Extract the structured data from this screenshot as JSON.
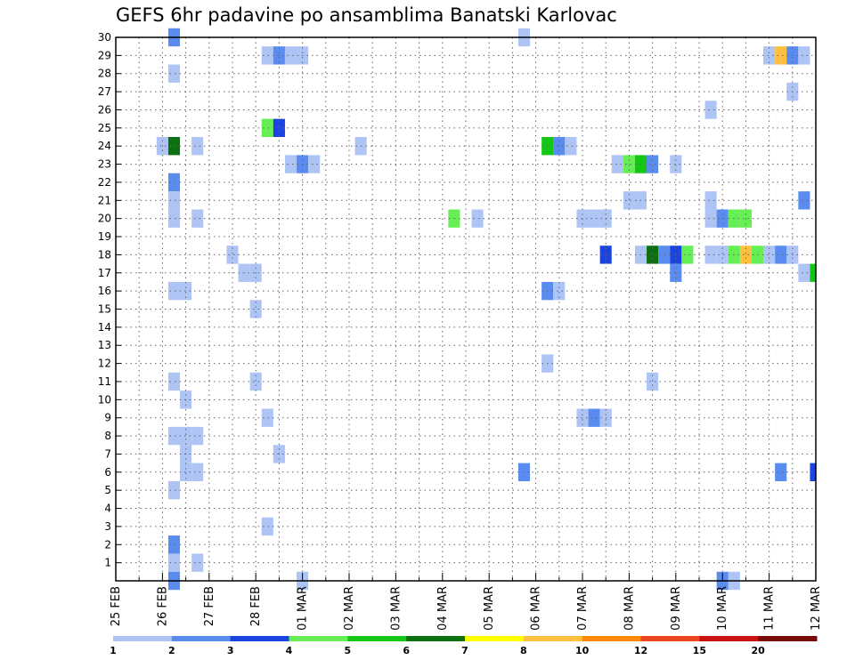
{
  "chart_data": {
    "type": "heatmap",
    "title": "GEFS 6hr padavine po ansamblima Banatski Karlovac",
    "y_ticks": [
      "1",
      "2",
      "3",
      "4",
      "5",
      "6",
      "7",
      "8",
      "9",
      "10",
      "11",
      "12",
      "13",
      "14",
      "15",
      "16",
      "17",
      "18",
      "19",
      "20",
      "21",
      "22",
      "23",
      "24",
      "25",
      "26",
      "27",
      "28",
      "29",
      "30"
    ],
    "y_range": [
      0,
      30
    ],
    "x_ticks": [
      "25 FEB",
      "26 FEB",
      "27 FEB",
      "28 FEB",
      "01 MAR",
      "02 MAR",
      "03 MAR",
      "04 MAR",
      "05 MAR",
      "06 MAR",
      "07 MAR",
      "08 MAR",
      "09 MAR",
      "10 MAR",
      "11 MAR",
      "12 MAR"
    ],
    "x_range_days": [
      0,
      15
    ],
    "x_step_hours": 6,
    "grid": true,
    "colorbar": {
      "colors": [
        "#adc4f5",
        "#5a8cf0",
        "#1a43e0",
        "#66ee55",
        "#15c715",
        "#0a7010",
        "#ffff00",
        "#ffc040",
        "#ff8800",
        "#ee4422",
        "#cc1111",
        "#7a0a0a"
      ],
      "labels": [
        "1",
        "2",
        "3",
        "4",
        "5",
        "6",
        "7",
        "8",
        "10",
        "12",
        "15",
        "20"
      ]
    },
    "cells": [
      {
        "t": 1.25,
        "m": 30,
        "c": 1
      },
      {
        "t": 8.75,
        "m": 30,
        "c": 0
      },
      {
        "t": 3.25,
        "m": 29,
        "c": 0
      },
      {
        "t": 3.5,
        "m": 29,
        "c": 1
      },
      {
        "t": 3.75,
        "m": 29,
        "c": 0
      },
      {
        "t": 4.0,
        "m": 29,
        "c": 0
      },
      {
        "t": 14.0,
        "m": 29,
        "c": 0
      },
      {
        "t": 14.25,
        "m": 29,
        "c": 7
      },
      {
        "t": 14.5,
        "m": 29,
        "c": 1
      },
      {
        "t": 14.75,
        "m": 29,
        "c": 0
      },
      {
        "t": 1.25,
        "m": 28,
        "c": 0
      },
      {
        "t": 14.5,
        "m": 27,
        "c": 0
      },
      {
        "t": 12.75,
        "m": 26,
        "c": 0
      },
      {
        "t": 3.25,
        "m": 25,
        "c": 3
      },
      {
        "t": 3.5,
        "m": 25,
        "c": 2
      },
      {
        "t": 1.0,
        "m": 24,
        "c": 0
      },
      {
        "t": 1.25,
        "m": 24,
        "c": 5
      },
      {
        "t": 1.75,
        "m": 24,
        "c": 0
      },
      {
        "t": 5.25,
        "m": 24,
        "c": 0
      },
      {
        "t": 9.25,
        "m": 24,
        "c": 4
      },
      {
        "t": 9.5,
        "m": 24,
        "c": 1
      },
      {
        "t": 9.75,
        "m": 24,
        "c": 0
      },
      {
        "t": 3.75,
        "m": 23,
        "c": 0
      },
      {
        "t": 4.0,
        "m": 23,
        "c": 1
      },
      {
        "t": 4.25,
        "m": 23,
        "c": 0
      },
      {
        "t": 10.75,
        "m": 23,
        "c": 0
      },
      {
        "t": 11.0,
        "m": 23,
        "c": 3
      },
      {
        "t": 11.25,
        "m": 23,
        "c": 4
      },
      {
        "t": 11.5,
        "m": 23,
        "c": 1
      },
      {
        "t": 12.0,
        "m": 23,
        "c": 0
      },
      {
        "t": 1.25,
        "m": 22,
        "c": 1
      },
      {
        "t": 1.25,
        "m": 21,
        "c": 0
      },
      {
        "t": 11.0,
        "m": 21,
        "c": 0
      },
      {
        "t": 11.25,
        "m": 21,
        "c": 0
      },
      {
        "t": 12.75,
        "m": 21,
        "c": 0
      },
      {
        "t": 14.75,
        "m": 21,
        "c": 1
      },
      {
        "t": 1.25,
        "m": 20,
        "c": 0
      },
      {
        "t": 1.75,
        "m": 20,
        "c": 0
      },
      {
        "t": 7.25,
        "m": 20,
        "c": 3
      },
      {
        "t": 7.75,
        "m": 20,
        "c": 0
      },
      {
        "t": 10.0,
        "m": 20,
        "c": 0
      },
      {
        "t": 10.25,
        "m": 20,
        "c": 0
      },
      {
        "t": 10.5,
        "m": 20,
        "c": 0
      },
      {
        "t": 12.75,
        "m": 20,
        "c": 0
      },
      {
        "t": 13.0,
        "m": 20,
        "c": 1
      },
      {
        "t": 13.25,
        "m": 20,
        "c": 3
      },
      {
        "t": 13.5,
        "m": 20,
        "c": 3
      },
      {
        "t": 2.5,
        "m": 18,
        "c": 0
      },
      {
        "t": 10.5,
        "m": 18,
        "c": 2
      },
      {
        "t": 11.25,
        "m": 18,
        "c": 0
      },
      {
        "t": 11.5,
        "m": 18,
        "c": 5
      },
      {
        "t": 11.75,
        "m": 18,
        "c": 1
      },
      {
        "t": 12.0,
        "m": 18,
        "c": 2
      },
      {
        "t": 12.25,
        "m": 18,
        "c": 3
      },
      {
        "t": 12.75,
        "m": 18,
        "c": 0
      },
      {
        "t": 13.0,
        "m": 18,
        "c": 0
      },
      {
        "t": 13.25,
        "m": 18,
        "c": 3
      },
      {
        "t": 13.5,
        "m": 18,
        "c": 7
      },
      {
        "t": 13.75,
        "m": 18,
        "c": 3
      },
      {
        "t": 14.0,
        "m": 18,
        "c": 0
      },
      {
        "t": 14.25,
        "m": 18,
        "c": 1
      },
      {
        "t": 14.5,
        "m": 18,
        "c": 0
      },
      {
        "t": 2.75,
        "m": 17,
        "c": 0
      },
      {
        "t": 3.0,
        "m": 17,
        "c": 0
      },
      {
        "t": 12.0,
        "m": 17,
        "c": 1
      },
      {
        "t": 14.75,
        "m": 17,
        "c": 0
      },
      {
        "t": 15.0,
        "m": 17,
        "c": 4
      },
      {
        "t": 1.25,
        "m": 16,
        "c": 0
      },
      {
        "t": 1.5,
        "m": 16,
        "c": 0
      },
      {
        "t": 9.25,
        "m": 16,
        "c": 1
      },
      {
        "t": 9.5,
        "m": 16,
        "c": 0
      },
      {
        "t": 3.0,
        "m": 15,
        "c": 0
      },
      {
        "t": 9.25,
        "m": 12,
        "c": 0
      },
      {
        "t": 1.25,
        "m": 11,
        "c": 0
      },
      {
        "t": 3.0,
        "m": 11,
        "c": 0
      },
      {
        "t": 11.5,
        "m": 11,
        "c": 0
      },
      {
        "t": 1.5,
        "m": 10,
        "c": 0
      },
      {
        "t": 3.25,
        "m": 9,
        "c": 0
      },
      {
        "t": 10.0,
        "m": 9,
        "c": 0
      },
      {
        "t": 10.25,
        "m": 9,
        "c": 1
      },
      {
        "t": 10.5,
        "m": 9,
        "c": 0
      },
      {
        "t": 1.25,
        "m": 8,
        "c": 0
      },
      {
        "t": 1.5,
        "m": 8,
        "c": 0
      },
      {
        "t": 1.75,
        "m": 8,
        "c": 0
      },
      {
        "t": 1.5,
        "m": 7,
        "c": 0
      },
      {
        "t": 3.5,
        "m": 7,
        "c": 0
      },
      {
        "t": 1.5,
        "m": 6,
        "c": 0
      },
      {
        "t": 1.75,
        "m": 6,
        "c": 0
      },
      {
        "t": 8.75,
        "m": 6,
        "c": 1
      },
      {
        "t": 14.25,
        "m": 6,
        "c": 1
      },
      {
        "t": 15.0,
        "m": 6,
        "c": 2
      },
      {
        "t": 1.25,
        "m": 5,
        "c": 0
      },
      {
        "t": 3.25,
        "m": 3,
        "c": 0
      },
      {
        "t": 1.25,
        "m": 2,
        "c": 1
      },
      {
        "t": 1.25,
        "m": 1,
        "c": 0
      },
      {
        "t": 1.75,
        "m": 1,
        "c": 0
      },
      {
        "t": 1.25,
        "m": 0,
        "c": 1
      },
      {
        "t": 4.0,
        "m": 0,
        "c": 0
      },
      {
        "t": 13.0,
        "m": 0,
        "c": 1
      },
      {
        "t": 13.25,
        "m": 0,
        "c": 0
      }
    ]
  }
}
